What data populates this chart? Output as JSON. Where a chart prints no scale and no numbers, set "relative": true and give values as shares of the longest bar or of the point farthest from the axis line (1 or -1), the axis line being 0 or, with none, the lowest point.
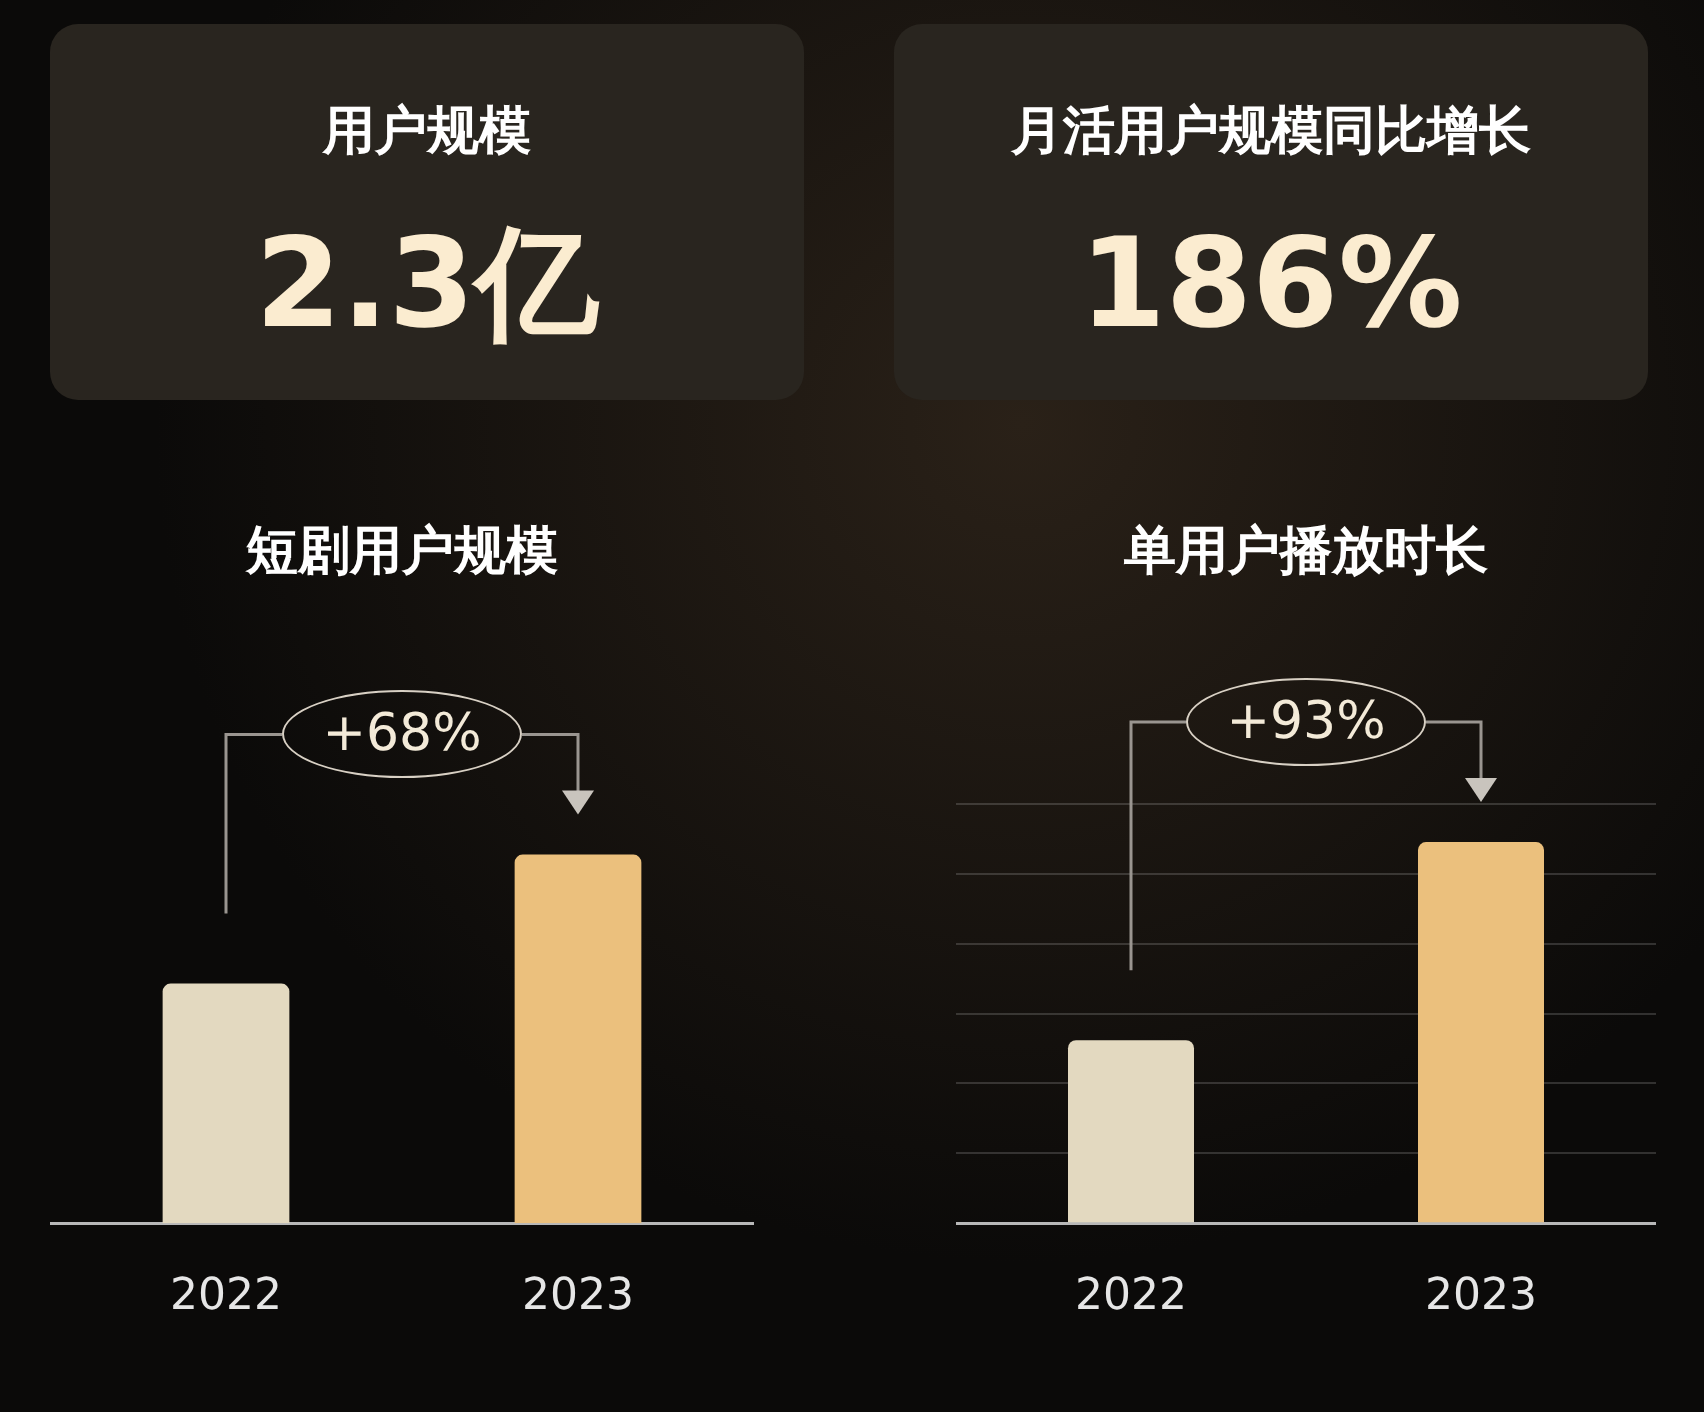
{
  "chart_data": [
    {
      "type": "other",
      "title": "用户规模",
      "annotations": [
        "2.3亿"
      ]
    },
    {
      "type": "other",
      "title": "月活用户规模同比增长",
      "annotations": [
        "186%"
      ]
    },
    {
      "type": "bar",
      "title": "短剧用户规模",
      "categories": [
        "2022",
        "2023"
      ],
      "values": [
        0.65,
        1
      ],
      "colors": [
        "#e3d9c0",
        "#ebc07d"
      ],
      "relative": true,
      "annotations": [
        "+68%"
      ]
    },
    {
      "type": "bar",
      "title": "单用户播放时长",
      "categories": [
        "2022",
        "2023"
      ],
      "values": [
        0.48,
        1
      ],
      "colors": [
        "#e3d9c0",
        "#ebc07d"
      ],
      "relative": true,
      "grid": "y",
      "annotations": [
        "+93%"
      ]
    }
  ]
}
